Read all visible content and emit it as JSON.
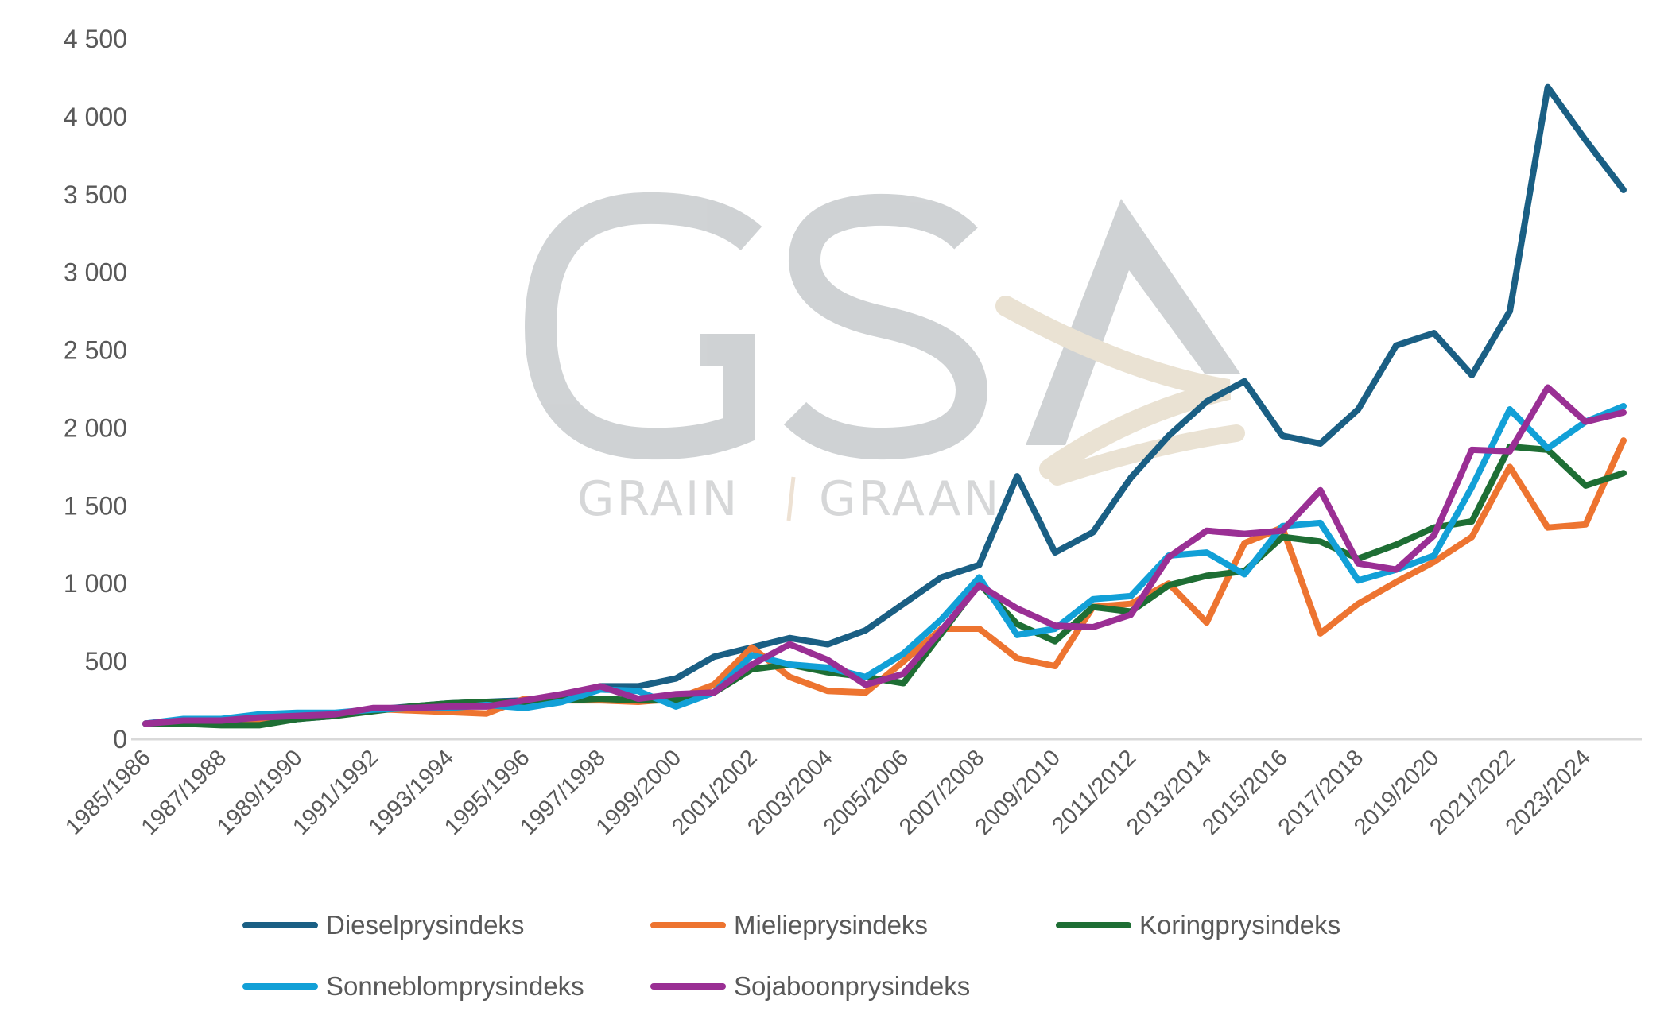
{
  "chart_data": {
    "type": "line",
    "title": "",
    "xlabel": "",
    "ylabel": "",
    "ylim": [
      0,
      4500
    ],
    "yticks": [
      0,
      500,
      1000,
      1500,
      2000,
      2500,
      3000,
      3500,
      4000,
      4500
    ],
    "ytick_labels": [
      "0",
      "500",
      "1 000",
      "1 500",
      "2 000",
      "2 500",
      "3 000",
      "3 500",
      "4 000",
      "4 500"
    ],
    "grid": false,
    "legend_position": "bottom",
    "categories": [
      "1985/1986",
      "1986/1987",
      "1987/1988",
      "1988/1989",
      "1989/1990",
      "1990/1991",
      "1991/1992",
      "1992/1993",
      "1993/1994",
      "1994/1995",
      "1995/1996",
      "1996/1997",
      "1997/1998",
      "1998/1999",
      "1999/2000",
      "2000/2001",
      "2001/2002",
      "2002/2003",
      "2003/2004",
      "2004/2005",
      "2005/2006",
      "2006/2007",
      "2007/2008",
      "2008/2009",
      "2009/2010",
      "2010/2011",
      "2011/2012",
      "2012/2013",
      "2013/2014",
      "2014/2015",
      "2015/2016",
      "2016/2017",
      "2017/2018",
      "2018/2019",
      "2019/2020",
      "2020/2021",
      "2021/2022",
      "2022/2023",
      "2023/2024",
      "2024/2025"
    ],
    "xtick_labels": [
      "1985/1986",
      "1987/1988",
      "1989/1990",
      "1991/1992",
      "1993/1994",
      "1995/1996",
      "1997/1998",
      "1999/2000",
      "2001/2002",
      "2003/2004",
      "2005/2006",
      "2007/2008",
      "2009/2010",
      "2011/2012",
      "2013/2014",
      "2015/2016",
      "2017/2018",
      "2019/2020",
      "2021/2022",
      "2023/2024"
    ],
    "series": [
      {
        "name": "Dieselprysindeks",
        "color": "#1a5f84",
        "values": [
          100,
          110,
          100,
          100,
          130,
          150,
          190,
          210,
          230,
          240,
          250,
          280,
          340,
          340,
          390,
          530,
          590,
          650,
          610,
          700,
          870,
          1040,
          1120,
          1690,
          1200,
          1330,
          1680,
          1950,
          2170,
          2300,
          1950,
          1900,
          2120,
          2530,
          2610,
          2340,
          2750,
          4190,
          3850,
          3530
        ]
      },
      {
        "name": "Mielieprysindeks",
        "color": "#ed7430",
        "values": [
          100,
          110,
          115,
          120,
          140,
          160,
          195,
          185,
          175,
          165,
          260,
          250,
          250,
          240,
          260,
          350,
          590,
          400,
          310,
          300,
          500,
          710,
          710,
          520,
          470,
          850,
          870,
          1000,
          750,
          1260,
          1360,
          680,
          870,
          1010,
          1140,
          1300,
          1750,
          1360,
          1380,
          1920
        ]
      },
      {
        "name": "Koringprysindeks",
        "color": "#1e6e34",
        "values": [
          100,
          100,
          90,
          90,
          130,
          150,
          180,
          210,
          230,
          240,
          240,
          250,
          260,
          250,
          250,
          300,
          450,
          480,
          430,
          400,
          360,
          680,
          1000,
          740,
          630,
          850,
          820,
          990,
          1050,
          1080,
          1300,
          1270,
          1160,
          1250,
          1360,
          1400,
          1880,
          1860,
          1630,
          1710
        ]
      },
      {
        "name": "Sonneblomprysindeks",
        "color": "#12a0d7",
        "values": [
          100,
          130,
          130,
          160,
          170,
          170,
          190,
          200,
          200,
          220,
          200,
          240,
          320,
          310,
          210,
          300,
          540,
          480,
          460,
          400,
          550,
          770,
          1040,
          670,
          710,
          900,
          920,
          1180,
          1200,
          1060,
          1370,
          1390,
          1020,
          1090,
          1180,
          1620,
          2120,
          1870,
          2040,
          2140
        ]
      },
      {
        "name": "Sojaboonprysindeks",
        "color": "#9a2f94",
        "values": [
          100,
          120,
          120,
          140,
          150,
          160,
          200,
          200,
          210,
          210,
          250,
          290,
          340,
          260,
          290,
          300,
          480,
          610,
          510,
          350,
          420,
          700,
          990,
          840,
          730,
          720,
          800,
          1170,
          1340,
          1320,
          1340,
          1600,
          1130,
          1090,
          1310,
          1860,
          1850,
          2260,
          2040,
          2100
        ]
      }
    ]
  },
  "watermark": {
    "logo_letters": "GSA",
    "logo_tagline": "GRAIN | GRAAN"
  },
  "legend": {
    "items": [
      "Dieselprysindeks",
      "Mielieprysindeks",
      "Koringprysindeks",
      "Sonneblomprysindeks",
      "Sojaboonprysindeks"
    ]
  }
}
